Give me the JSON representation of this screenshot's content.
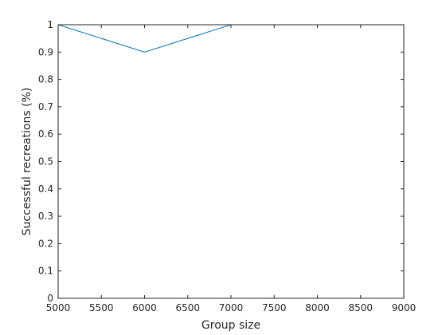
{
  "chart_data": {
    "type": "line",
    "title": "",
    "xlabel": "Group size",
    "ylabel": "Successful recreations (%)",
    "xlim": [
      5000,
      9000
    ],
    "ylim": [
      0,
      1
    ],
    "xticks": [
      5000,
      5500,
      6000,
      6500,
      7000,
      7500,
      8000,
      8500,
      9000
    ],
    "yticks": [
      0,
      0.1,
      0.2,
      0.3,
      0.4,
      0.5,
      0.6,
      0.7,
      0.8,
      0.9,
      1
    ],
    "grid": false,
    "series": [
      {
        "x": [
          5000,
          6000,
          7000,
          8000,
          9000
        ],
        "y": [
          1,
          0.9,
          1,
          1,
          1
        ],
        "color": "#0072bd"
      }
    ]
  }
}
